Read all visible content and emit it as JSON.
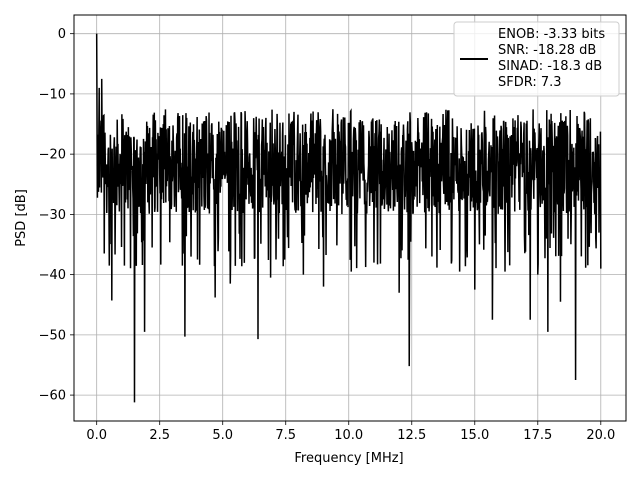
{
  "chart_data": {
    "type": "line",
    "title": "",
    "xlabel": "Frequency [MHz]",
    "ylabel": "PSD [dB]",
    "xlim": [
      -0.9,
      21.0
    ],
    "ylim": [
      -64.3,
      3.1
    ],
    "xticks": [
      0.0,
      2.5,
      5.0,
      7.5,
      10.0,
      12.5,
      15.0,
      17.5,
      20.0
    ],
    "xtick_labels": [
      "0.0",
      "2.5",
      "5.0",
      "7.5",
      "10.0",
      "12.5",
      "15.0",
      "17.5",
      "20.0"
    ],
    "yticks": [
      0,
      -10,
      -20,
      -30,
      -40,
      -50,
      -60
    ],
    "ytick_labels": [
      "0",
      "−10",
      "−20",
      "−30",
      "−40",
      "−50",
      "−60"
    ],
    "grid": true,
    "legend_position": "top-right",
    "series": [
      {
        "legend_lines": [
          "ENOB: -3.33 bits",
          "SNR: -18.28 dB",
          "SINAD: -18.3 dB",
          "SFDR: 7.3"
        ],
        "color": "#000000",
        "noise_floor_db": -22,
        "noise_band_db": [
          -30,
          -14
        ],
        "x": [
          0.0,
          0.05,
          0.1,
          0.15,
          0.2,
          0.3,
          0.35,
          0.5,
          0.6,
          1.1,
          1.5,
          1.9,
          2.2,
          3.5,
          4.0,
          4.7,
          5.3,
          6.4,
          6.9,
          8.2,
          9.0,
          10.1,
          11.0,
          12.0,
          12.4,
          13.3,
          14.4,
          15.0,
          15.7,
          16.2,
          17.2,
          17.5,
          17.9,
          18.4,
          19.0,
          20.0
        ],
        "y": [
          0.0,
          -22.0,
          -9.0,
          -18.0,
          -7.5,
          -36.5,
          -25.0,
          -38.5,
          -44.3,
          -38.5,
          -61.2,
          -49.5,
          -35.5,
          -50.3,
          -37.5,
          -43.8,
          -41.5,
          -50.7,
          -40.5,
          -40.0,
          -42.0,
          -39.5,
          -38.0,
          -43.0,
          -55.2,
          -37.0,
          -39.5,
          -42.5,
          -47.5,
          -39.5,
          -47.5,
          -40.0,
          -49.5,
          -44.5,
          -57.5,
          -39.0
        ]
      }
    ]
  }
}
